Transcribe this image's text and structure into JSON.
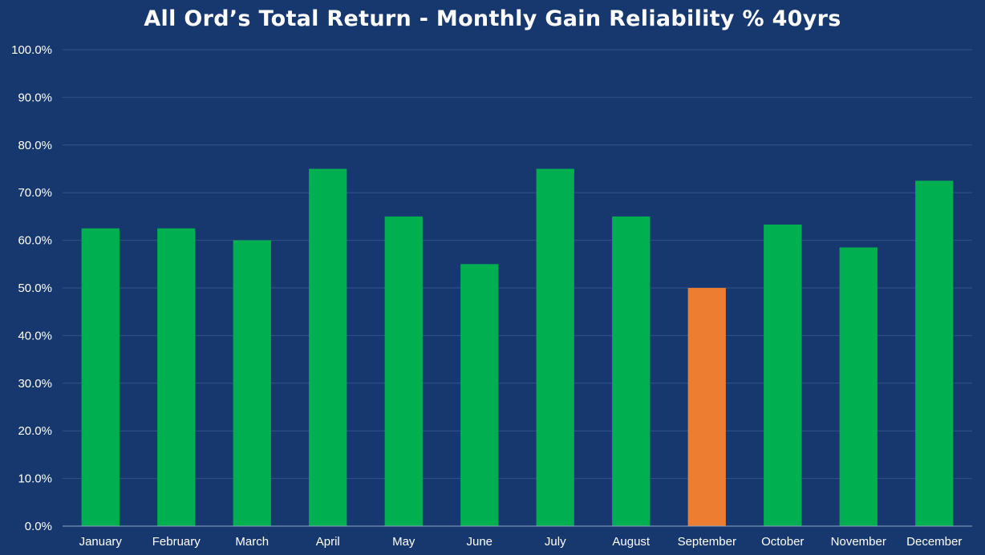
{
  "chart_data": {
    "type": "bar",
    "title": "All Ord’s Total Return - Monthly Gain Reliability % 40yrs",
    "xlabel": "",
    "ylabel": "",
    "categories": [
      "January",
      "February",
      "March",
      "April",
      "May",
      "June",
      "July",
      "August",
      "September",
      "October",
      "November",
      "December"
    ],
    "values": [
      62.5,
      62.5,
      60.0,
      75.0,
      65.0,
      55.0,
      75.0,
      65.0,
      50.0,
      63.3,
      58.5,
      72.5
    ],
    "ylim": [
      0,
      100
    ],
    "y_ticks": [
      "0.0%",
      "10.0%",
      "20.0%",
      "30.0%",
      "40.0%",
      "50.0%",
      "60.0%",
      "70.0%",
      "80.0%",
      "90.0%",
      "100.0%"
    ],
    "grid": true,
    "legend": "none",
    "colors": {
      "background": "#17386e",
      "bar_default": "#00b050",
      "bar_highlight": "#ed7d31",
      "highlight_category": "September"
    }
  }
}
